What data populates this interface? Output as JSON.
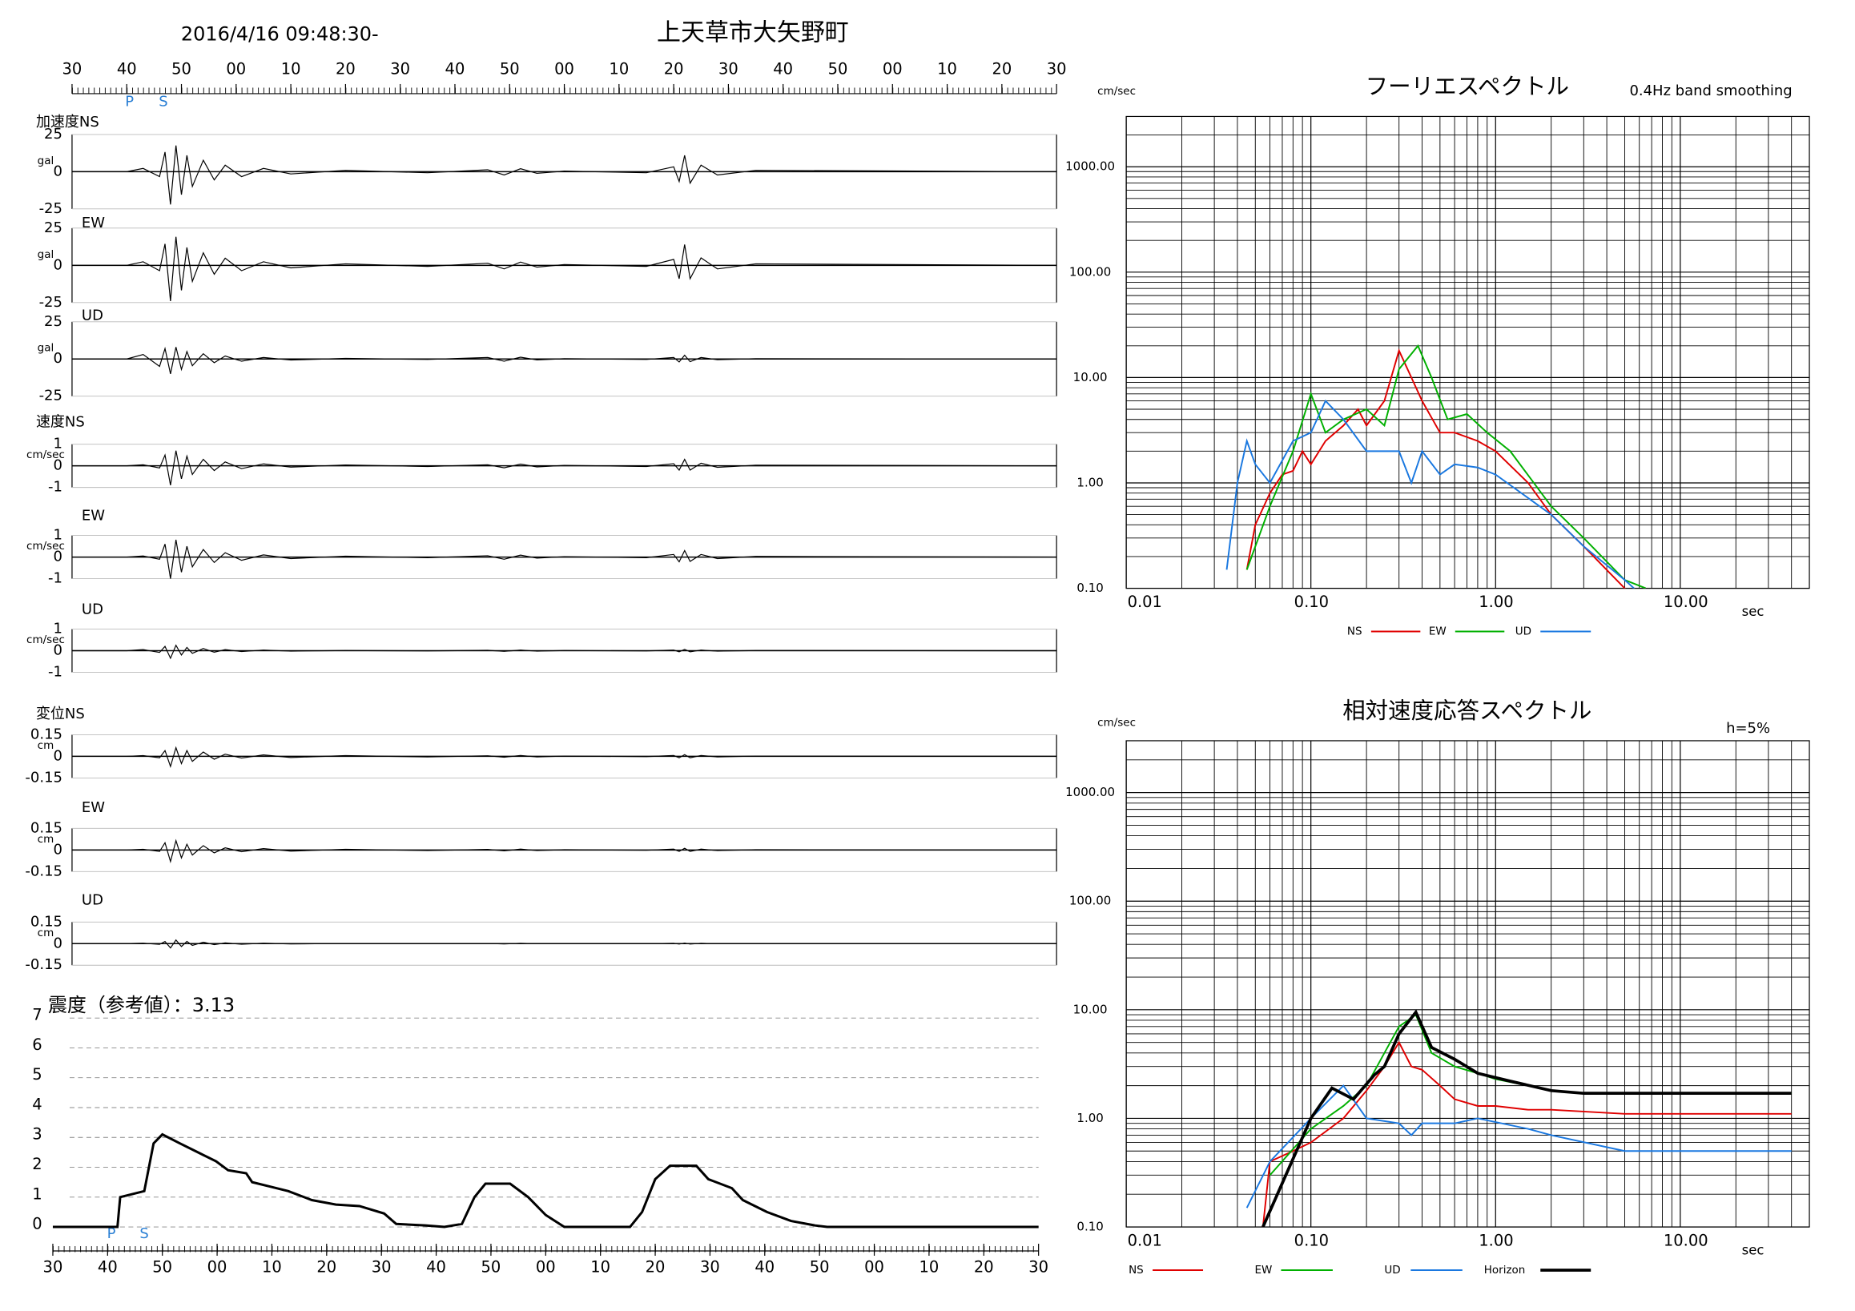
{
  "header": {
    "datetime": "2016/4/16 09:48:30-",
    "location": "上天草市大矢野町"
  },
  "chart_data": [
    {
      "type": "waveform",
      "xlim": [
        0,
        180
      ],
      "xticks": [
        {
          "value": 0,
          "label": "30"
        },
        {
          "value": 10,
          "label": "40"
        },
        {
          "value": 20,
          "label": "50"
        },
        {
          "value": 30,
          "label": "00"
        },
        {
          "value": 40,
          "label": "10"
        },
        {
          "value": 50,
          "label": "20"
        },
        {
          "value": 60,
          "label": "30"
        },
        {
          "value": 70,
          "label": "40"
        },
        {
          "value": 80,
          "label": "50"
        },
        {
          "value": 90,
          "label": "00"
        },
        {
          "value": 100,
          "label": "10"
        },
        {
          "value": 110,
          "label": "20"
        },
        {
          "value": 120,
          "label": "30"
        },
        {
          "value": 130,
          "label": "40"
        },
        {
          "value": 140,
          "label": "50"
        },
        {
          "value": 150,
          "label": "00"
        },
        {
          "value": 160,
          "label": "10"
        },
        {
          "value": 170,
          "label": "20"
        },
        {
          "value": 180,
          "label": "30"
        }
      ],
      "markers": [
        {
          "label": "P",
          "x": 10.5
        },
        {
          "label": "S",
          "x": 16.7
        }
      ],
      "x": [
        0,
        10,
        13,
        16,
        17,
        18,
        19,
        20,
        21,
        22,
        24,
        26,
        28,
        31,
        35,
        40,
        50,
        65,
        76,
        79,
        82,
        85,
        90,
        105,
        110,
        111,
        112,
        113,
        115,
        118,
        125,
        180
      ],
      "panels": [
        {
          "name": "加速度NS",
          "unit": "gal",
          "ylim": [
            -25,
            25
          ],
          "yticks": [
            25,
            0,
            -25
          ],
          "values": [
            0,
            0,
            2.2,
            -3.3,
            13.2,
            -22,
            17.6,
            -15.4,
            11,
            -9.9,
            7.7,
            -5.5,
            4.4,
            -3.3,
            2.2,
            -1.5,
            0.9,
            -0.7,
            1.3,
            -2.2,
            2,
            -1.1,
            0.4,
            -0.7,
            3.3,
            -6.6,
            11,
            -7.7,
            4.4,
            -2.2,
            0.9,
            0
          ]
        },
        {
          "name": "EW",
          "unit": "gal",
          "ylim": [
            -25,
            25
          ],
          "yticks": [
            25,
            0,
            -25
          ],
          "values": [
            0,
            0,
            2.4,
            -3.6,
            14.4,
            -24,
            19.2,
            -16.8,
            12,
            -10.8,
            8.4,
            -6,
            4.8,
            -3.6,
            2.4,
            -1.7,
            1,
            -0.7,
            1.4,
            -2.4,
            2.2,
            -1.2,
            0.5,
            -0.7,
            4,
            -9,
            14,
            -9,
            5,
            -2.4,
            1,
            0
          ]
        },
        {
          "name": "UD",
          "unit": "gal",
          "ylim": [
            -25,
            25
          ],
          "yticks": [
            25,
            0,
            -25
          ],
          "values": [
            0,
            0,
            3,
            -5,
            7,
            -10,
            8,
            -7,
            5,
            -4.5,
            3.5,
            -2.5,
            2,
            -1.5,
            1,
            -0.7,
            0.4,
            -0.3,
            1,
            -1.5,
            1.2,
            -0.6,
            0.2,
            -0.3,
            1,
            -2,
            2.5,
            -1.8,
            1,
            -0.5,
            0.2,
            0
          ]
        },
        {
          "name": "速度NS",
          "unit": "cm/sec",
          "ylim": [
            -1,
            1
          ],
          "yticks": [
            1,
            0,
            -1
          ],
          "values": [
            0,
            0,
            0.05,
            -0.1,
            0.5,
            -0.9,
            0.7,
            -0.6,
            0.45,
            -0.4,
            0.3,
            -0.22,
            0.18,
            -0.13,
            0.09,
            -0.06,
            0.04,
            -0.03,
            0.05,
            -0.09,
            0.08,
            -0.05,
            0.02,
            -0.03,
            0.1,
            -0.2,
            0.3,
            -0.2,
            0.12,
            -0.07,
            0.03,
            0
          ]
        },
        {
          "name": "EW",
          "unit": "cm/sec",
          "ylim": [
            -1,
            1
          ],
          "yticks": [
            1,
            0,
            -1
          ],
          "values": [
            0,
            0,
            0.05,
            -0.1,
            0.6,
            -1,
            0.8,
            -0.7,
            0.5,
            -0.45,
            0.35,
            -0.25,
            0.2,
            -0.15,
            0.1,
            -0.07,
            0.04,
            -0.03,
            0.06,
            -0.1,
            0.09,
            -0.05,
            0.02,
            -0.03,
            0.12,
            -0.22,
            0.3,
            -0.2,
            0.12,
            -0.07,
            0.03,
            0
          ]
        },
        {
          "name": "UD",
          "unit": "cm/sec",
          "ylim": [
            -1,
            1
          ],
          "yticks": [
            1,
            0,
            -1
          ],
          "values": [
            0,
            0,
            0.05,
            -0.08,
            0.2,
            -0.35,
            0.25,
            -0.2,
            0.15,
            -0.12,
            0.1,
            -0.07,
            0.05,
            -0.04,
            0.03,
            -0.02,
            0.01,
            -0.01,
            0.02,
            -0.03,
            0.03,
            -0.02,
            0.01,
            -0.01,
            0.03,
            -0.05,
            0.06,
            -0.05,
            0.03,
            -0.02,
            0.01,
            0
          ]
        },
        {
          "name": "変位NS",
          "unit": "cm",
          "ylim": [
            -0.15,
            0.15
          ],
          "yticks": [
            0.15,
            0,
            -0.15
          ],
          "values": [
            0,
            0,
            0.005,
            -0.01,
            0.04,
            -0.07,
            0.06,
            -0.05,
            0.04,
            -0.035,
            0.03,
            -0.02,
            0.015,
            -0.012,
            0.01,
            -0.008,
            0.005,
            -0.004,
            0.004,
            -0.006,
            0.006,
            -0.004,
            0.002,
            -0.002,
            0.006,
            -0.01,
            0.012,
            -0.01,
            0.006,
            -0.004,
            0.002,
            0
          ]
        },
        {
          "name": "EW",
          "unit": "cm",
          "ylim": [
            -0.15,
            0.15
          ],
          "yticks": [
            0.15,
            0,
            -0.15
          ],
          "values": [
            0,
            0,
            0.005,
            -0.01,
            0.05,
            -0.08,
            0.065,
            -0.055,
            0.04,
            -0.035,
            0.03,
            -0.02,
            0.015,
            -0.012,
            0.01,
            -0.008,
            0.005,
            -0.004,
            0.004,
            -0.006,
            0.006,
            -0.004,
            0.002,
            -0.002,
            0.006,
            -0.01,
            0.012,
            -0.01,
            0.006,
            -0.004,
            0.002,
            0
          ]
        },
        {
          "name": "UD",
          "unit": "cm",
          "ylim": [
            -0.15,
            0.15
          ],
          "yticks": [
            0.15,
            0,
            -0.15
          ],
          "values": [
            0,
            0,
            0.003,
            -0.005,
            0.015,
            -0.03,
            0.025,
            -0.02,
            0.015,
            -0.012,
            0.01,
            -0.007,
            0.005,
            -0.004,
            0.003,
            -0.002,
            0.001,
            -0.001,
            0.001,
            -0.002,
            0.002,
            -0.001,
            0.001,
            -0.001,
            0.002,
            -0.003,
            0.004,
            -0.003,
            0.002,
            -0.001,
            0.001,
            0
          ]
        }
      ]
    },
    {
      "type": "intensity",
      "title": "震度（参考値）：3.13",
      "xlim": [
        0,
        180
      ],
      "xticks": [
        {
          "value": 0,
          "label": "30"
        },
        {
          "value": 10,
          "label": "40"
        },
        {
          "value": 20,
          "label": "50"
        },
        {
          "value": 30,
          "label": "00"
        },
        {
          "value": 40,
          "label": "10"
        },
        {
          "value": 50,
          "label": "20"
        },
        {
          "value": 60,
          "label": "30"
        },
        {
          "value": 70,
          "label": "40"
        },
        {
          "value": 80,
          "label": "50"
        },
        {
          "value": 90,
          "label": "00"
        },
        {
          "value": 100,
          "label": "10"
        },
        {
          "value": 110,
          "label": "20"
        },
        {
          "value": 120,
          "label": "30"
        },
        {
          "value": 130,
          "label": "40"
        },
        {
          "value": 140,
          "label": "50"
        },
        {
          "value": 150,
          "label": "00"
        },
        {
          "value": 160,
          "label": "10"
        },
        {
          "value": 170,
          "label": "20"
        },
        {
          "value": 180,
          "label": "30"
        }
      ],
      "markers": [
        {
          "label": "P",
          "x": 10.7
        },
        {
          "label": "S",
          "x": 16.7
        }
      ],
      "ylim": [
        0,
        7
      ],
      "yticks": [
        0,
        1,
        2,
        3,
        4,
        5,
        6,
        7
      ],
      "grid": "dashed",
      "x": [
        0,
        11.8,
        12.3,
        16.7,
        18.4,
        20,
        23.2,
        26.5,
        29.8,
        32,
        35.3,
        36.4,
        39.7,
        43,
        47.3,
        51.7,
        56,
        60.5,
        62.7,
        68,
        71.5,
        74.7,
        77,
        79,
        83.5,
        86.8,
        90,
        93.4,
        105.4,
        107.6,
        110,
        112.7,
        117.5,
        119.7,
        124,
        126,
        130.4,
        134.8,
        139.2,
        141.4,
        180
      ],
      "values": [
        0,
        0,
        1,
        1.2,
        2.8,
        3.1,
        2.8,
        2.5,
        2.2,
        1.9,
        1.8,
        1.5,
        1.35,
        1.2,
        0.9,
        0.75,
        0.7,
        0.45,
        0.1,
        0.05,
        0,
        0.1,
        1,
        1.45,
        1.45,
        1,
        0.4,
        0,
        0,
        0.5,
        1.6,
        2.05,
        2.05,
        1.6,
        1.3,
        0.9,
        0.5,
        0.2,
        0.05,
        0,
        0
      ]
    },
    {
      "type": "loglog",
      "title": "フーリエスペクトル",
      "subtitle": "0.4Hz band smoothing",
      "y_unit": "cm/sec",
      "x_unit": "sec",
      "log_x": true,
      "log_y": true,
      "grid": true,
      "xlim": [
        0.01,
        50
      ],
      "xticks": [
        {
          "value": 0.01,
          "label": "0.01"
        },
        {
          "value": 0.1,
          "label": "0.10"
        },
        {
          "value": 1,
          "label": "1.00"
        },
        {
          "value": 10,
          "label": "10.00"
        }
      ],
      "ylim": [
        0.1,
        3000
      ],
      "yticks": [
        {
          "value": 0.1,
          "label": "0.10"
        },
        {
          "value": 1,
          "label": "1.00"
        },
        {
          "value": 10,
          "label": "10.00"
        },
        {
          "value": 100,
          "label": "100.00"
        },
        {
          "value": 1000,
          "label": "1000.00"
        }
      ],
      "series": [
        {
          "name": "NS",
          "color": "#e00000",
          "x": [
            0.045,
            0.05,
            0.06,
            0.07,
            0.08,
            0.09,
            0.1,
            0.12,
            0.15,
            0.18,
            0.2,
            0.25,
            0.3,
            0.35,
            0.4,
            0.5,
            0.6,
            0.8,
            1,
            1.5,
            2,
            3,
            5,
            6
          ],
          "values": [
            0.15,
            0.4,
            0.8,
            1.2,
            1.3,
            2,
            1.5,
            2.5,
            3.5,
            5,
            3.5,
            6,
            18,
            10,
            6,
            3,
            3,
            2.5,
            2,
            1,
            0.5,
            0.25,
            0.1,
            0.08
          ]
        },
        {
          "name": "EW",
          "color": "#00b000",
          "x": [
            0.045,
            0.06,
            0.08,
            0.1,
            0.12,
            0.15,
            0.2,
            0.25,
            0.3,
            0.38,
            0.45,
            0.55,
            0.7,
            0.9,
            1.2,
            2,
            3,
            5,
            6.5
          ],
          "values": [
            0.15,
            0.6,
            2,
            7,
            3,
            4,
            5,
            3.5,
            12,
            20,
            10,
            4,
            4.5,
            3,
            2,
            0.6,
            0.3,
            0.12,
            0.1
          ]
        },
        {
          "name": "UD",
          "color": "#1a78e0",
          "x": [
            0.035,
            0.04,
            0.045,
            0.05,
            0.06,
            0.08,
            0.1,
            0.12,
            0.15,
            0.2,
            0.25,
            0.3,
            0.35,
            0.4,
            0.5,
            0.6,
            0.8,
            1,
            2,
            3,
            5,
            6
          ],
          "values": [
            0.15,
            1,
            2.5,
            1.5,
            1,
            2.5,
            3,
            6,
            4,
            2,
            2,
            2,
            1,
            2,
            1.2,
            1.5,
            1.4,
            1.2,
            0.5,
            0.25,
            0.12,
            0.09
          ]
        }
      ]
    },
    {
      "type": "loglog",
      "title": "相対速度応答スペクトル",
      "subtitle": "h=5%",
      "y_unit": "cm/sec",
      "x_unit": "sec",
      "log_x": true,
      "log_y": true,
      "grid": true,
      "xlim": [
        0.01,
        50
      ],
      "xticks": [
        {
          "value": 0.01,
          "label": "0.01"
        },
        {
          "value": 0.1,
          "label": "0.10"
        },
        {
          "value": 1,
          "label": "1.00"
        },
        {
          "value": 10,
          "label": "10.00"
        }
      ],
      "ylim": [
        0.1,
        3000
      ],
      "yticks": [
        {
          "value": 0.1,
          "label": "0.10"
        },
        {
          "value": 1,
          "label": "1.00"
        },
        {
          "value": 10,
          "label": "10.00"
        },
        {
          "value": 100,
          "label": "100.00"
        },
        {
          "value": 1000,
          "label": "1000.00"
        }
      ],
      "series": [
        {
          "name": "NS",
          "color": "#e00000",
          "x": [
            0.055,
            0.06,
            0.08,
            0.1,
            0.15,
            0.2,
            0.25,
            0.3,
            0.35,
            0.4,
            0.5,
            0.6,
            0.8,
            1,
            1.5,
            2,
            5,
            10,
            40
          ],
          "values": [
            0.1,
            0.4,
            0.5,
            0.6,
            1,
            1.8,
            3,
            5,
            3,
            2.8,
            2,
            1.5,
            1.3,
            1.3,
            1.2,
            1.2,
            1.1,
            1.1,
            1.1
          ]
        },
        {
          "name": "EW",
          "color": "#00b000",
          "x": [
            0.06,
            0.1,
            0.15,
            0.2,
            0.25,
            0.3,
            0.37,
            0.45,
            0.6,
            0.8,
            1,
            1.5,
            2,
            3,
            10,
            40
          ],
          "values": [
            0.3,
            0.8,
            1.3,
            2,
            4,
            7,
            9,
            4,
            3,
            2.6,
            2.3,
            2,
            1.8,
            1.7,
            1.7,
            1.7
          ]
        },
        {
          "name": "UD",
          "color": "#1a78e0",
          "x": [
            0.045,
            0.06,
            0.1,
            0.15,
            0.2,
            0.3,
            0.35,
            0.4,
            0.6,
            0.8,
            1.5,
            2,
            5,
            10,
            40
          ],
          "values": [
            0.15,
            0.4,
            1,
            2,
            1,
            0.9,
            0.7,
            0.9,
            0.9,
            1,
            0.8,
            0.7,
            0.5,
            0.5,
            0.5
          ]
        },
        {
          "name": "Horizon",
          "color": "#000000",
          "line_width": 2.5,
          "x": [
            0.055,
            0.1,
            0.13,
            0.17,
            0.22,
            0.25,
            0.3,
            0.37,
            0.45,
            0.6,
            0.8,
            1.2,
            2,
            3,
            10,
            40
          ],
          "values": [
            0.1,
            1,
            1.9,
            1.5,
            2.5,
            3,
            6,
            9.5,
            4.5,
            3.5,
            2.6,
            2.2,
            1.8,
            1.7,
            1.7,
            1.7
          ]
        }
      ]
    }
  ]
}
